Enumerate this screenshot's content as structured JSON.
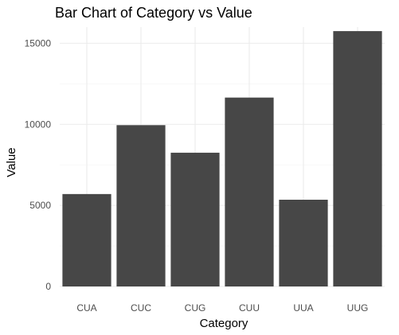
{
  "chart_data": {
    "type": "bar",
    "title": "Bar Chart of Category vs Value",
    "xlabel": "Category",
    "ylabel": "Value",
    "categories": [
      "CUA",
      "CUC",
      "CUG",
      "CUU",
      "UUA",
      "UUG"
    ],
    "values": [
      5700,
      9950,
      8250,
      11650,
      5350,
      15750
    ],
    "ylim": [
      0,
      16000
    ],
    "yticks": [
      0,
      5000,
      10000,
      15000
    ],
    "ytick_labels": [
      "0",
      "5000",
      "10000",
      "15000"
    ],
    "grid": true,
    "legend": "none",
    "bar_color": "#474747"
  }
}
